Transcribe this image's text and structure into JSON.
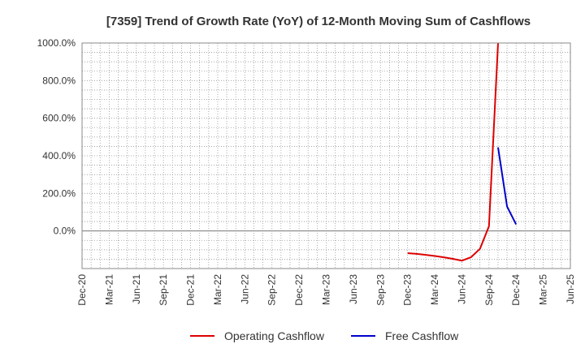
{
  "chart_data": {
    "type": "line",
    "title": "[7359]  Trend of Growth Rate (YoY) of 12-Month Moving Sum of Cashflows",
    "xlabel": "",
    "ylabel": "",
    "x_ticks": [
      "Dec-20",
      "Mar-21",
      "Jun-21",
      "Sep-21",
      "Dec-21",
      "Mar-22",
      "Jun-22",
      "Sep-22",
      "Dec-22",
      "Mar-23",
      "Jun-23",
      "Sep-23",
      "Dec-23",
      "Mar-24",
      "Jun-24",
      "Sep-24",
      "Dec-24",
      "Mar-25",
      "Jun-25"
    ],
    "y_ticks": [
      "0.0%",
      "200.0%",
      "400.0%",
      "600.0%",
      "800.0%",
      "1000.0%"
    ],
    "ylim": [
      -200,
      1000
    ],
    "grid": true,
    "legend_position": "bottom",
    "series": [
      {
        "name": "Operating Cashflow",
        "color": "#dd0000",
        "points": [
          [
            "Dec-23",
            -118
          ],
          [
            "Jan-24",
            -122
          ],
          [
            "Feb-24",
            -127
          ],
          [
            "Mar-24",
            -133
          ],
          [
            "Apr-24",
            -140
          ],
          [
            "May-24",
            -148
          ],
          [
            "Jun-24",
            -158
          ],
          [
            "Jul-24",
            -140
          ],
          [
            "Aug-24",
            -95
          ],
          [
            "Sep-24",
            25
          ],
          [
            "Oct-24",
            1000
          ]
        ]
      },
      {
        "name": "Free Cashflow",
        "color": "#0000cc",
        "points": [
          [
            "Oct-24",
            445
          ],
          [
            "Nov-24",
            130
          ],
          [
            "Dec-24",
            35
          ]
        ]
      }
    ]
  }
}
